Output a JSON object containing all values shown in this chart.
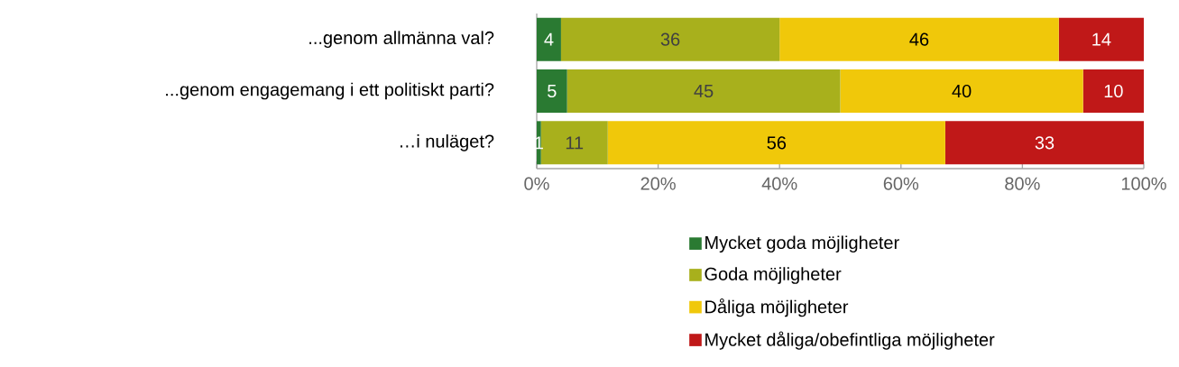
{
  "chart_data": {
    "type": "bar",
    "orientation": "horizontal",
    "stacked": true,
    "categories": [
      "...genom allmänna val?",
      "...genom engagemang i ett politiskt parti?",
      "…i nuläget?"
    ],
    "series": [
      {
        "name": "Mycket goda möjligheter",
        "color": "#2a7a32",
        "values": [
          4,
          5,
          0.7
        ],
        "value_labels": [
          "4",
          "5",
          "1"
        ]
      },
      {
        "name": "Goda möjligheter",
        "color": "#a8b01c",
        "values": [
          36,
          45,
          11
        ],
        "value_labels": [
          "36",
          "45",
          "11"
        ]
      },
      {
        "name": "Dåliga möjligheter",
        "color": "#f0c80a",
        "values": [
          46,
          40,
          55.6
        ],
        "value_labels": [
          "46",
          "40",
          "56"
        ]
      },
      {
        "name": "Mycket dåliga/obefintliga möjligheter",
        "color": "#c01818",
        "values": [
          14,
          10,
          32.7
        ],
        "value_labels": [
          "14",
          "10",
          "33"
        ]
      }
    ],
    "xlim": [
      0,
      100
    ],
    "xticks": [
      {
        "value": 0,
        "label": "0%"
      },
      {
        "value": 20,
        "label": "20%"
      },
      {
        "value": 40,
        "label": "40%"
      },
      {
        "value": 60,
        "label": "60%"
      },
      {
        "value": 80,
        "label": "80%"
      },
      {
        "value": 100,
        "label": "100%"
      }
    ],
    "legend": "bottom"
  }
}
